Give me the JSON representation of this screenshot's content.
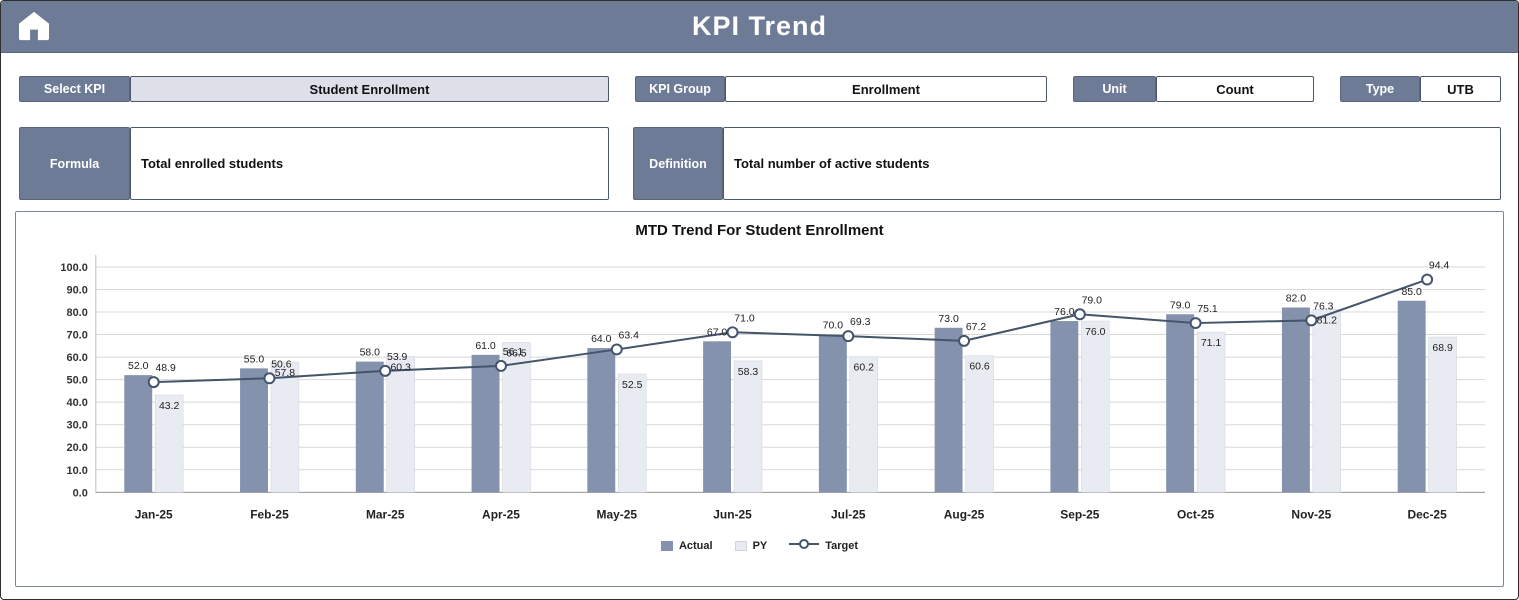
{
  "header": {
    "title": "KPI Trend"
  },
  "fields": {
    "select_kpi": {
      "label": "Select KPI",
      "value": "Student Enrollment"
    },
    "kpi_group": {
      "label": "KPI Group",
      "value": "Enrollment"
    },
    "unit": {
      "label": "Unit",
      "value": "Count"
    },
    "type": {
      "label": "Type",
      "value": "UTB"
    },
    "formula": {
      "label": "Formula",
      "value": "Total enrolled students"
    },
    "definition": {
      "label": "Definition",
      "value": "Total number of active students"
    }
  },
  "colors": {
    "header_bg": "#6d7b97",
    "actual_bar": "#8592ae",
    "py_bar": "#e9ebf2",
    "target_line": "#44546a",
    "select_bg": "#dde0e9",
    "gridline": "#d8d8d8"
  },
  "chart_data": {
    "type": "bar",
    "title": "MTD Trend For Student Enrollment",
    "categories": [
      "Jan-25",
      "Feb-25",
      "Mar-25",
      "Apr-25",
      "May-25",
      "Jun-25",
      "Jul-25",
      "Aug-25",
      "Sep-25",
      "Oct-25",
      "Nov-25",
      "Dec-25"
    ],
    "series": [
      {
        "name": "Actual",
        "type": "bar",
        "color": "#8592ae",
        "values": [
          52.0,
          55.0,
          58.0,
          61.0,
          64.0,
          67.0,
          70.0,
          73.0,
          76.0,
          79.0,
          82.0,
          85.0
        ]
      },
      {
        "name": "PY",
        "type": "bar",
        "color": "#e9ebf2",
        "values": [
          43.2,
          57.8,
          60.3,
          66.5,
          52.5,
          58.3,
          60.2,
          60.6,
          76.0,
          71.1,
          81.2,
          68.9
        ]
      },
      {
        "name": "Target",
        "type": "line",
        "marker": "open-circle",
        "color": "#44546a",
        "values": [
          48.9,
          50.6,
          53.9,
          56.1,
          63.4,
          71.0,
          69.3,
          67.2,
          79.0,
          75.1,
          76.3,
          94.4
        ]
      }
    ],
    "xlabel": "",
    "ylabel": "",
    "ylim": [
      0,
      100
    ],
    "ytick_step": 10,
    "grid": true,
    "legend_position": "bottom"
  }
}
